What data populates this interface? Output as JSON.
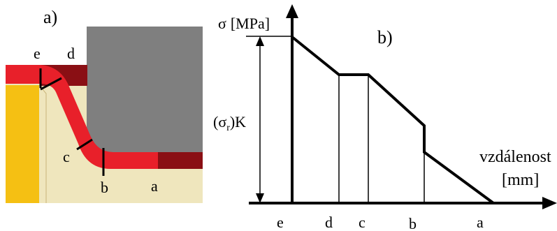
{
  "panel_a": {
    "label": "a)",
    "points": {
      "e": "e",
      "d": "d",
      "c": "c",
      "b": "b",
      "a": "a"
    },
    "colors": {
      "die": "#7f7f7f",
      "punch": "#f5c013",
      "background": "#efe6bd",
      "sheet": "#e8202a",
      "sheet_dark": "#8a0f14"
    }
  },
  "panel_b": {
    "label": "b)",
    "y_axis_symbol": "σ",
    "y_axis_unit": "[MPa]",
    "value_label_base": "(σ",
    "value_label_sub": "r",
    "value_label_end": ")K",
    "x_axis_label": "vzdálenost",
    "x_axis_unit": "[mm]",
    "x_ticks": [
      "e",
      "d",
      "c",
      "b",
      "a"
    ]
  }
}
